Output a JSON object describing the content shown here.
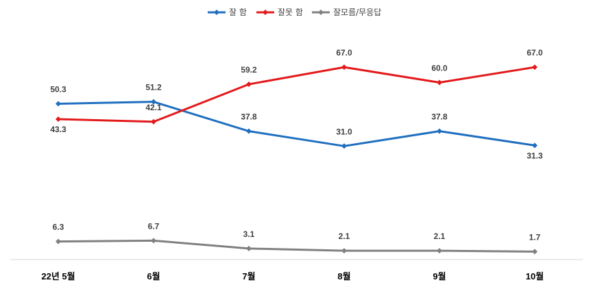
{
  "chart_data": {
    "type": "line",
    "categories": [
      "22년 5월",
      "6월",
      "7월",
      "8월",
      "9월",
      "10월"
    ],
    "series": [
      {
        "name": "잘 함",
        "color": "#1f6fbf",
        "values": [
          50.3,
          51.2,
          37.8,
          31.0,
          37.8,
          31.3
        ],
        "labels": [
          "50.3",
          "51.2",
          "37.8",
          "31.0",
          "37.8",
          "31.3"
        ]
      },
      {
        "name": "잘못 함",
        "color": "#e31a1c",
        "values": [
          43.3,
          42.1,
          59.2,
          67.0,
          60.0,
          67.0
        ],
        "labels": [
          "43.3",
          "42.1",
          "59.2",
          "67.0",
          "60.0",
          "67.0"
        ]
      },
      {
        "name": "잘모름/무응답",
        "color": "#808080",
        "values": [
          6.3,
          6.7,
          3.1,
          2.1,
          2.1,
          1.7
        ],
        "labels": [
          "6.3",
          "6.7",
          "3.1",
          "2.1",
          "2.1",
          "1.7"
        ]
      }
    ],
    "legend_position": "top-center",
    "grid": false
  }
}
